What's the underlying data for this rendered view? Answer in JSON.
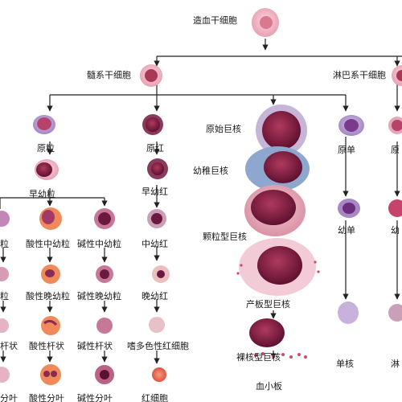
{
  "title": "造血干细胞",
  "branches": {
    "myeloid": "髓系干细胞",
    "lymphoid": "淋巴系干细胞"
  },
  "colors": {
    "line": "#222222",
    "nucleus": "#7a1a3a",
    "cytoplasm_pink": "#f2b9c4",
    "cytoplasm_purple": "#b79bd0",
    "rbc": "#e64b3c",
    "platelet": "#d24a64"
  },
  "labels": {
    "granulocyte": {
      "pro": "原粒",
      "early": "早幼粒",
      "neu_mid": "粒",
      "neu_late": "粒",
      "neu_band": "杆状",
      "neu_seg": "分叶",
      "eos_mid": "酸性中幼粒",
      "eos_late": "酸性晚幼粒",
      "eos_band": "酸性杆状",
      "eos_seg": "酸性分叶",
      "bas_mid": "碱性中幼粒",
      "bas_late": "碱性晚幼粒",
      "bas_band": "碱性杆状",
      "bas_seg": "碱性分叶"
    },
    "erythroid": {
      "pro": "原红",
      "early": "早幼红",
      "mid": "中幼红",
      "late": "晚幼红",
      "reticulo": "嗜多色性红细胞",
      "rbc": "红细胞"
    },
    "megakaryocyte": {
      "pro": "原始巨核",
      "young": "幼稚巨核",
      "granular": "颗粒型巨核",
      "producing": "产板型巨核",
      "naked": "裸核型巨核",
      "platelet": "血小板"
    },
    "monocyte": {
      "pro": "原单",
      "young": "幼单",
      "mature": "单核"
    },
    "lymphocyte": {
      "pro": "原",
      "young": "幼",
      "mature": "淋"
    }
  }
}
